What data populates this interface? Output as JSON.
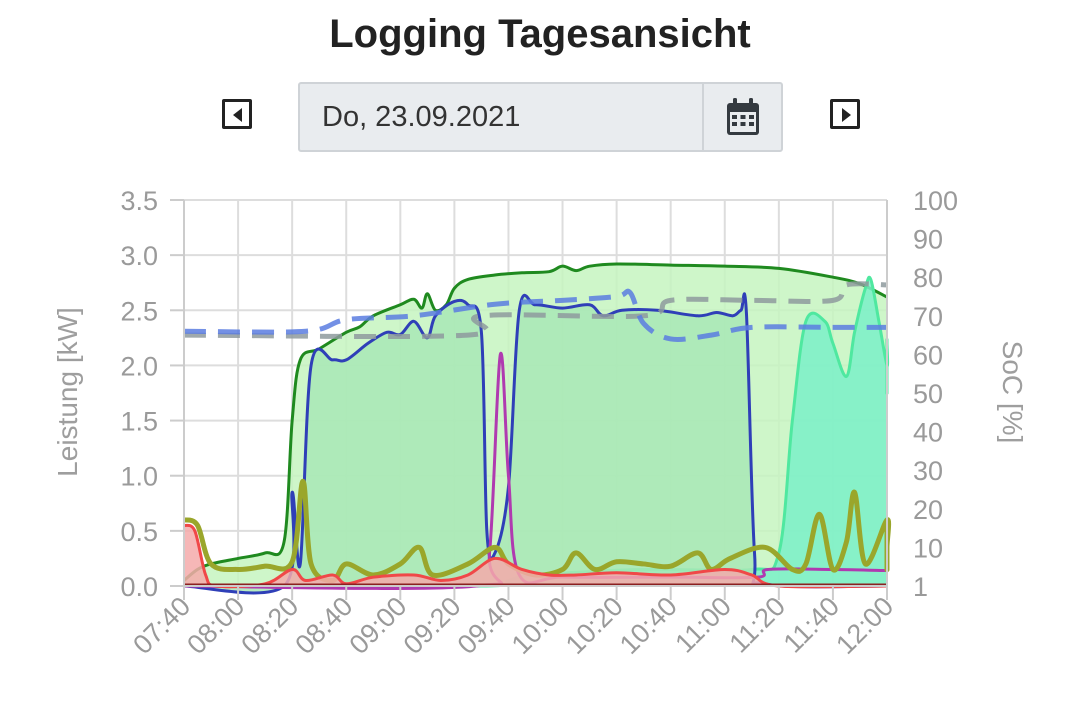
{
  "header": {
    "title": "Logging Tagesansicht"
  },
  "date_picker": {
    "value": "Do, 23.09.2021"
  },
  "icons": {
    "prev": "caret-left-icon",
    "next": "caret-right-icon",
    "calendar": "calendar-icon"
  },
  "chart_data": {
    "type": "area",
    "x_ticks": [
      "07:40",
      "08:00",
      "08:20",
      "08:40",
      "09:00",
      "09:20",
      "09:40",
      "10:00",
      "10:20",
      "10:40",
      "11:00",
      "11:20",
      "11:40",
      "12:00"
    ],
    "x_range_minutes": [
      460,
      720
    ],
    "y_left": {
      "label": "Leistung [kW]",
      "ticks": [
        "0.0",
        "0.5",
        "1.0",
        "1.5",
        "2.0",
        "2.5",
        "3.0",
        "3.5"
      ],
      "range": [
        0,
        3.5
      ]
    },
    "y_right": {
      "label": "SoC [%]",
      "ticks": [
        "1",
        "10",
        "20",
        "30",
        "40",
        "50",
        "60",
        "70",
        "80",
        "90",
        "100"
      ],
      "range": [
        0,
        100
      ]
    },
    "grid": true,
    "series": [
      {
        "color": "#1f8a1f",
        "fill": "#c6f5c0",
        "axis": "left",
        "style": "area",
        "points": [
          [
            460,
            0.05
          ],
          [
            465,
            0.15
          ],
          [
            470,
            0.2
          ],
          [
            480,
            0.25
          ],
          [
            490,
            0.3
          ],
          [
            497,
            0.4
          ],
          [
            500,
            1.5
          ],
          [
            503,
            2.05
          ],
          [
            510,
            2.15
          ],
          [
            520,
            2.3
          ],
          [
            525,
            2.35
          ],
          [
            530,
            2.45
          ],
          [
            540,
            2.55
          ],
          [
            545,
            2.6
          ],
          [
            548,
            2.52
          ],
          [
            550,
            2.65
          ],
          [
            553,
            2.5
          ],
          [
            557,
            2.55
          ],
          [
            560,
            2.7
          ],
          [
            565,
            2.78
          ],
          [
            575,
            2.82
          ],
          [
            585,
            2.84
          ],
          [
            595,
            2.85
          ],
          [
            600,
            2.9
          ],
          [
            605,
            2.86
          ],
          [
            610,
            2.9
          ],
          [
            620,
            2.92
          ],
          [
            640,
            2.91
          ],
          [
            660,
            2.9
          ],
          [
            680,
            2.88
          ],
          [
            700,
            2.8
          ],
          [
            710,
            2.74
          ],
          [
            720,
            2.62
          ]
        ]
      },
      {
        "color": "#4fe8a0",
        "fill": "#7af0c8",
        "axis": "left",
        "style": "area",
        "points": [
          [
            460,
            0
          ],
          [
            570,
            0
          ],
          [
            580,
            0.05
          ],
          [
            590,
            0.1
          ],
          [
            630,
            0.15
          ],
          [
            670,
            0.15
          ],
          [
            680,
            0.3
          ],
          [
            685,
            1.5
          ],
          [
            690,
            2.4
          ],
          [
            697,
            2.4
          ],
          [
            700,
            2.2
          ],
          [
            705,
            1.9
          ],
          [
            708,
            2.3
          ],
          [
            712,
            2.7
          ],
          [
            714,
            2.78
          ],
          [
            717,
            2.4
          ],
          [
            720,
            2.0
          ],
          [
            725,
            2.2
          ],
          [
            730,
            2.2
          ],
          [
            736,
            1.85
          ],
          [
            740,
            1.75
          ],
          [
            750,
            1.8
          ],
          [
            755,
            2.0
          ],
          [
            760,
            2.05
          ]
        ]
      },
      {
        "color": "#2f3fb8",
        "fill": "#a8e8b6",
        "axis": "left",
        "style": "area",
        "points": [
          [
            460,
            0
          ],
          [
            497,
            0
          ],
          [
            500,
            0.85
          ],
          [
            503,
            0.2
          ],
          [
            507,
            2.0
          ],
          [
            515,
            2.05
          ],
          [
            520,
            2.05
          ],
          [
            528,
            2.2
          ],
          [
            535,
            2.3
          ],
          [
            540,
            2.28
          ],
          [
            545,
            2.4
          ],
          [
            550,
            2.25
          ],
          [
            553,
            2.45
          ],
          [
            560,
            2.58
          ],
          [
            565,
            2.55
          ],
          [
            570,
            2.3
          ],
          [
            572,
            0.5
          ],
          [
            575,
            0.3
          ],
          [
            580,
            0.9
          ],
          [
            584,
            2.5
          ],
          [
            590,
            2.55
          ],
          [
            600,
            2.52
          ],
          [
            610,
            2.55
          ],
          [
            615,
            2.45
          ],
          [
            622,
            2.5
          ],
          [
            635,
            2.5
          ],
          [
            650,
            2.45
          ],
          [
            657,
            2.48
          ],
          [
            663,
            2.45
          ],
          [
            666,
            2.5
          ],
          [
            668,
            2.48
          ],
          [
            671,
            0.3
          ],
          [
            675,
            0.02
          ],
          [
            720,
            0.0
          ]
        ]
      },
      {
        "color": "#b03ab0",
        "axis": "left",
        "style": "line",
        "points": [
          [
            460,
            0
          ],
          [
            568,
            0
          ],
          [
            573,
            0.3
          ],
          [
            577,
            2.1
          ],
          [
            580,
            1.0
          ],
          [
            584,
            0.1
          ],
          [
            600,
            0.08
          ],
          [
            640,
            0.08
          ],
          [
            672,
            0.08
          ],
          [
            676,
            0.15
          ],
          [
            700,
            0.15
          ],
          [
            720,
            0.14
          ]
        ]
      },
      {
        "color": "#9aa62b",
        "axis": "left",
        "style": "line",
        "points": [
          [
            460,
            0.6
          ],
          [
            465,
            0.55
          ],
          [
            470,
            0.2
          ],
          [
            480,
            0.15
          ],
          [
            490,
            0.18
          ],
          [
            500,
            0.22
          ],
          [
            504,
            0.95
          ],
          [
            507,
            0.2
          ],
          [
            515,
            0.05
          ],
          [
            520,
            0.2
          ],
          [
            530,
            0.1
          ],
          [
            540,
            0.2
          ],
          [
            547,
            0.35
          ],
          [
            552,
            0.1
          ],
          [
            565,
            0.2
          ],
          [
            575,
            0.35
          ],
          [
            580,
            0.2
          ],
          [
            590,
            0.1
          ],
          [
            600,
            0.15
          ],
          [
            605,
            0.3
          ],
          [
            612,
            0.15
          ],
          [
            620,
            0.22
          ],
          [
            630,
            0.2
          ],
          [
            640,
            0.18
          ],
          [
            650,
            0.3
          ],
          [
            655,
            0.15
          ],
          [
            662,
            0.25
          ],
          [
            675,
            0.35
          ],
          [
            685,
            0.15
          ],
          [
            690,
            0.2
          ],
          [
            695,
            0.65
          ],
          [
            700,
            0.15
          ],
          [
            705,
            0.4
          ],
          [
            708,
            0.85
          ],
          [
            712,
            0.2
          ],
          [
            720,
            0.6
          ],
          [
            728,
            0.35
          ],
          [
            735,
            0.15
          ],
          [
            745,
            0.5
          ],
          [
            755,
            0.55
          ],
          [
            760,
            0.3
          ]
        ]
      },
      {
        "color": "#f04848",
        "fill": "#f5aaaa",
        "axis": "left",
        "style": "area",
        "points": [
          [
            460,
            0.55
          ],
          [
            464,
            0.5
          ],
          [
            468,
            0.1
          ],
          [
            472,
            0.0
          ],
          [
            490,
            0.02
          ],
          [
            500,
            0.15
          ],
          [
            505,
            0.05
          ],
          [
            515,
            0.1
          ],
          [
            520,
            0.02
          ],
          [
            530,
            0.08
          ],
          [
            545,
            0.1
          ],
          [
            555,
            0.05
          ],
          [
            565,
            0.1
          ],
          [
            575,
            0.25
          ],
          [
            585,
            0.15
          ],
          [
            595,
            0.1
          ],
          [
            605,
            0.1
          ],
          [
            620,
            0.12
          ],
          [
            640,
            0.1
          ],
          [
            660,
            0.15
          ],
          [
            670,
            0.1
          ],
          [
            680,
            0.0
          ],
          [
            720,
            0.0
          ]
        ]
      },
      {
        "color": "#8e9a9e",
        "axis": "right",
        "style": "dashed",
        "points": [
          [
            460,
            65
          ],
          [
            565,
            65
          ],
          [
            570,
            70
          ],
          [
            630,
            70
          ],
          [
            640,
            74
          ],
          [
            670,
            74
          ],
          [
            700,
            74
          ],
          [
            705,
            78
          ],
          [
            720,
            78
          ]
        ]
      },
      {
        "color": "#5a7de0",
        "axis": "right",
        "style": "dashed",
        "points": [
          [
            460,
            66
          ],
          [
            505,
            66
          ],
          [
            520,
            69
          ],
          [
            545,
            70
          ],
          [
            575,
            73
          ],
          [
            600,
            74
          ],
          [
            620,
            75
          ],
          [
            625,
            76
          ],
          [
            630,
            68
          ],
          [
            640,
            64
          ],
          [
            655,
            65
          ],
          [
            670,
            67
          ],
          [
            700,
            67
          ],
          [
            720,
            67
          ]
        ]
      }
    ]
  }
}
